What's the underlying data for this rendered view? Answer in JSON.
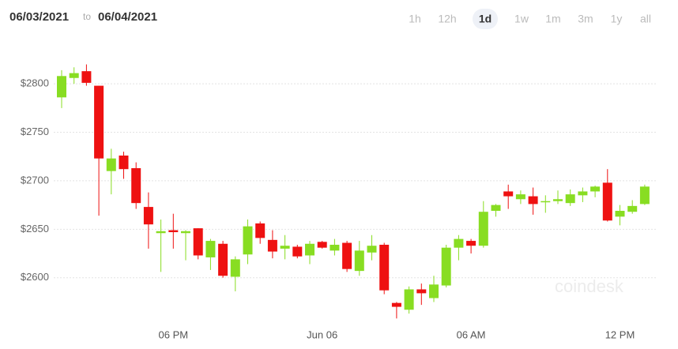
{
  "chart_data": {
    "type": "candlestick",
    "date_from": "06/03/2021",
    "date_sep": "to",
    "date_to": "06/04/2021",
    "range_buttons": [
      "1h",
      "12h",
      "1d",
      "1w",
      "1m",
      "3m",
      "1y",
      "all"
    ],
    "selected_range": "1d",
    "watermark": "coindesk",
    "up_color": "#88dd22",
    "down_color": "#ee1111",
    "grid": true,
    "ylim": [
      2555,
      2840
    ],
    "yticks": [
      {
        "value": 2600,
        "label": "$2600"
      },
      {
        "value": 2650,
        "label": "$2650"
      },
      {
        "value": 2700,
        "label": "$2700"
      },
      {
        "value": 2750,
        "label": "$2750"
      },
      {
        "value": 2800,
        "label": "$2800"
      }
    ],
    "categories": [
      null,
      null,
      null,
      null,
      null,
      null,
      null,
      null,
      null,
      "06 PM",
      null,
      null,
      null,
      null,
      null,
      null,
      null,
      null,
      null,
      null,
      null,
      "Jun 06",
      null,
      null,
      null,
      null,
      null,
      null,
      null,
      null,
      null,
      null,
      null,
      "06 AM",
      null,
      null,
      null,
      null,
      null,
      null,
      null,
      null,
      null,
      null,
      null,
      "12 PM",
      null,
      null
    ],
    "open": [
      2786,
      2806,
      2813,
      2798,
      2710,
      2726,
      2713,
      2673,
      2646,
      2649,
      2646,
      2651,
      2621,
      2635,
      2601,
      2624,
      2656,
      2639,
      2630,
      2632,
      2623,
      2637,
      2628,
      2636,
      2607,
      2626,
      2634,
      2574,
      2567,
      2588,
      2579,
      2592,
      2631,
      2638,
      2633,
      2669,
      2689,
      2681,
      2684,
      2678,
      2679,
      2677,
      2685,
      2689,
      2698,
      2663,
      2668,
      2676
    ],
    "high": [
      2814,
      2817,
      2820,
      2798,
      2733,
      2730,
      2719,
      2688,
      2660,
      2666,
      2649,
      2651,
      2640,
      2638,
      2622,
      2660,
      2658,
      2649,
      2644,
      2634,
      2638,
      2638,
      2640,
      2638,
      2638,
      2644,
      2636,
      2575,
      2591,
      2594,
      2602,
      2634,
      2644,
      2640,
      2679,
      2676,
      2696,
      2690,
      2693,
      2685,
      2690,
      2691,
      2693,
      2695,
      2712,
      2675,
      2680,
      2696
    ],
    "low": [
      2775,
      2800,
      2798,
      2664,
      2686,
      2702,
      2671,
      2630,
      2606,
      2630,
      2618,
      2619,
      2608,
      2600,
      2586,
      2614,
      2635,
      2620,
      2619,
      2620,
      2614,
      2630,
      2623,
      2606,
      2602,
      2618,
      2583,
      2558,
      2563,
      2572,
      2575,
      2590,
      2618,
      2625,
      2631,
      2663,
      2671,
      2676,
      2665,
      2667,
      2676,
      2674,
      2678,
      2683,
      2658,
      2654,
      2666,
      2675
    ],
    "close": [
      2808,
      2811,
      2801,
      2723,
      2723,
      2712,
      2677,
      2655,
      2648,
      2647,
      2648,
      2623,
      2638,
      2602,
      2619,
      2653,
      2641,
      2627,
      2633,
      2622,
      2635,
      2631,
      2634,
      2609,
      2628,
      2633,
      2587,
      2570,
      2588,
      2584,
      2593,
      2631,
      2640,
      2633,
      2668,
      2675,
      2684,
      2686,
      2676,
      2679,
      2681,
      2686,
      2689,
      2694,
      2659,
      2669,
      2674,
      2694
    ]
  }
}
